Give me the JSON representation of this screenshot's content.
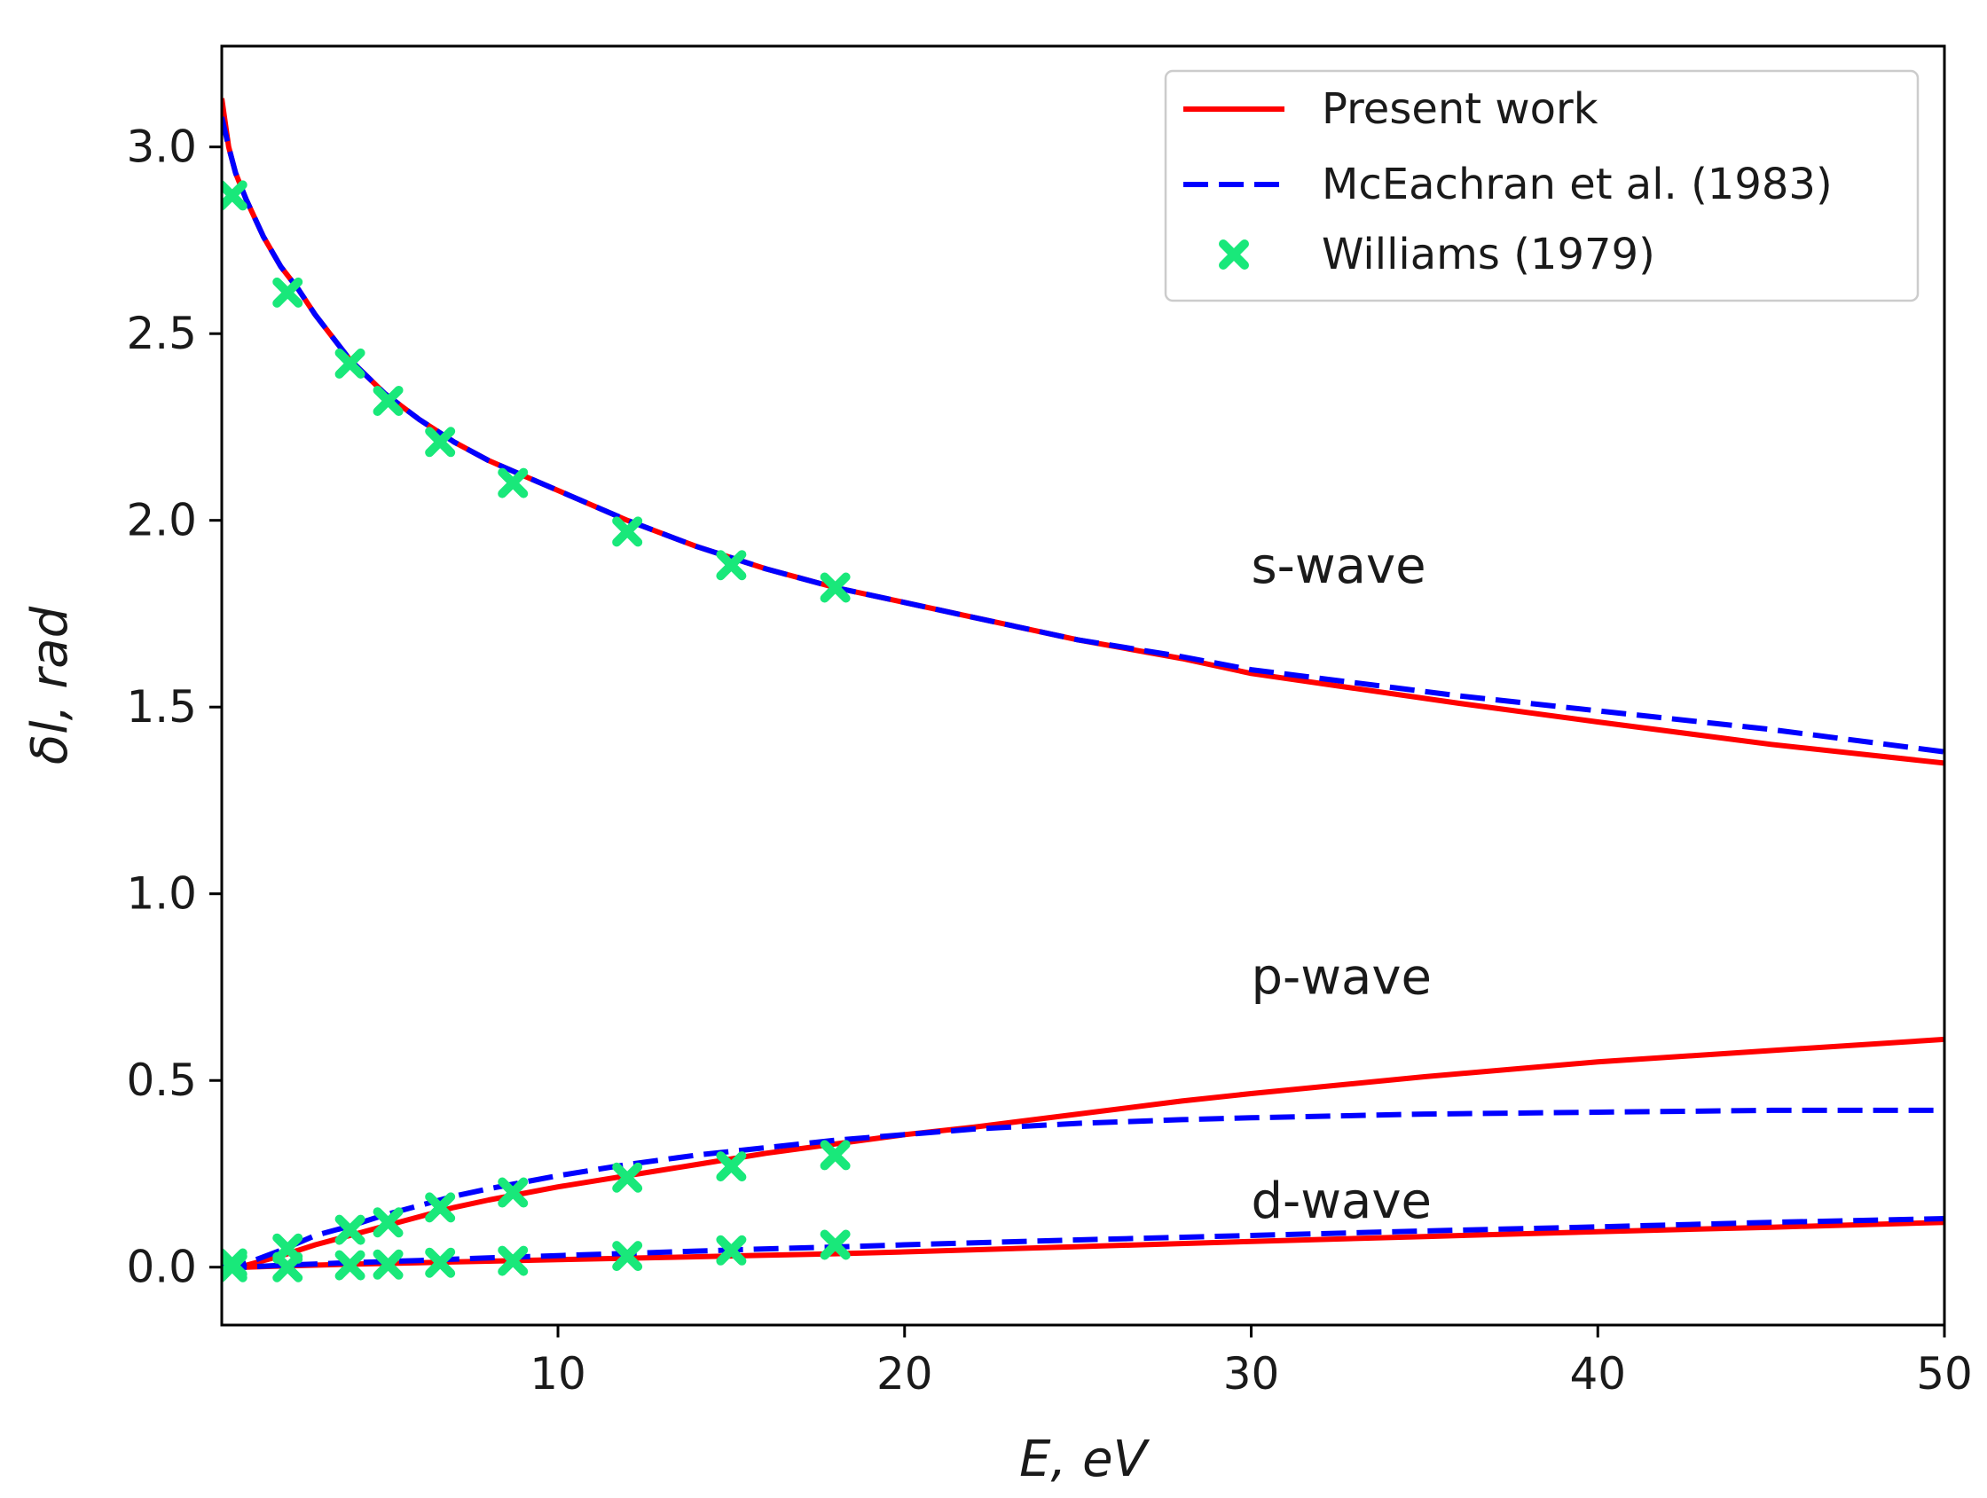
{
  "chart_data": {
    "type": "line",
    "title": "",
    "xlabel": "E, eV",
    "ylabel": "δl, rad",
    "xlim": [
      0.3,
      50
    ],
    "ylim": [
      -0.155,
      3.27
    ],
    "xticks": [
      10,
      20,
      30,
      40,
      50
    ],
    "yticks": [
      0.0,
      0.5,
      1.0,
      1.5,
      2.0,
      2.5,
      3.0
    ],
    "xtick_labels": [
      "10",
      "20",
      "30",
      "40",
      "50"
    ],
    "ytick_labels": [
      "0.0",
      "0.5",
      "1.0",
      "1.5",
      "2.0",
      "2.5",
      "3.0"
    ],
    "legend_position": "top-right",
    "legend": [
      {
        "key": "present",
        "label": "Present work",
        "style": "solid",
        "color": "#ff0000"
      },
      {
        "key": "mceachran",
        "label": "McEachran et al. (1983)",
        "style": "dashed",
        "color": "#0000ff"
      },
      {
        "key": "williams",
        "label": "Williams (1979)",
        "style": "x-marker",
        "color": "#19e87a"
      }
    ],
    "annotations": [
      {
        "key": "s",
        "text": "s-wave",
        "x": 30,
        "y": 1.88
      },
      {
        "key": "p",
        "text": "p-wave",
        "x": 30,
        "y": 0.78
      },
      {
        "key": "d",
        "text": "d-wave",
        "x": 30,
        "y": 0.18
      }
    ],
    "series": [
      {
        "name": "Present work s-wave",
        "style": "solid",
        "color": "#ff0000",
        "x": [
          0.3,
          0.5,
          0.7,
          1,
          1.5,
          2,
          2.5,
          3,
          4,
          5,
          6,
          7,
          8,
          9,
          10,
          12,
          14,
          16,
          18,
          20,
          22,
          25,
          28,
          30,
          33,
          36,
          40,
          45,
          50
        ],
        "y": [
          3.13,
          3.0,
          2.93,
          2.86,
          2.76,
          2.68,
          2.62,
          2.55,
          2.43,
          2.34,
          2.27,
          2.21,
          2.16,
          2.12,
          2.08,
          2.0,
          1.93,
          1.87,
          1.82,
          1.78,
          1.74,
          1.68,
          1.63,
          1.59,
          1.55,
          1.51,
          1.46,
          1.4,
          1.35
        ]
      },
      {
        "name": "McEachran et al. (1983) s-wave",
        "style": "dashed",
        "color": "#0000ff",
        "x": [
          0.3,
          0.5,
          0.7,
          1,
          1.5,
          2,
          2.5,
          3,
          4,
          5,
          6,
          7,
          8,
          9,
          10,
          12,
          14,
          16,
          18,
          20,
          22,
          25,
          28,
          30,
          33,
          36,
          40,
          45,
          50
        ],
        "y": [
          3.08,
          3.0,
          2.93,
          2.86,
          2.76,
          2.68,
          2.62,
          2.55,
          2.43,
          2.34,
          2.27,
          2.21,
          2.16,
          2.12,
          2.08,
          2.0,
          1.93,
          1.87,
          1.82,
          1.78,
          1.74,
          1.68,
          1.635,
          1.6,
          1.565,
          1.53,
          1.49,
          1.44,
          1.38
        ]
      },
      {
        "name": "Present work p-wave",
        "style": "solid",
        "color": "#ff0000",
        "x": [
          0.3,
          1,
          2,
          3,
          4,
          5,
          6,
          7,
          8,
          10,
          12,
          14,
          16,
          18,
          20,
          22,
          25,
          28,
          30,
          35,
          40,
          45,
          50
        ],
        "y": [
          0.0,
          0.005,
          0.03,
          0.06,
          0.085,
          0.11,
          0.135,
          0.16,
          0.18,
          0.215,
          0.245,
          0.275,
          0.305,
          0.33,
          0.355,
          0.375,
          0.41,
          0.445,
          0.465,
          0.51,
          0.55,
          0.58,
          0.61
        ]
      },
      {
        "name": "McEachran et al. (1983) p-wave",
        "style": "dashed",
        "color": "#0000ff",
        "x": [
          0.3,
          1,
          2,
          3,
          4,
          5,
          6,
          7,
          8,
          10,
          12,
          14,
          16,
          18,
          20,
          22,
          25,
          28,
          30,
          35,
          40,
          45,
          50
        ],
        "y": [
          0.0,
          0.01,
          0.045,
          0.085,
          0.11,
          0.14,
          0.165,
          0.19,
          0.21,
          0.245,
          0.275,
          0.3,
          0.32,
          0.34,
          0.355,
          0.37,
          0.385,
          0.395,
          0.4,
          0.41,
          0.415,
          0.42,
          0.42
        ]
      },
      {
        "name": "Present work d-wave",
        "style": "solid",
        "color": "#ff0000",
        "x": [
          0.3,
          1,
          2,
          4,
          6,
          8,
          10,
          12,
          14,
          16,
          18,
          20,
          25,
          30,
          35,
          40,
          45,
          50
        ],
        "y": [
          0.0,
          0.0,
          0.003,
          0.008,
          0.012,
          0.016,
          0.02,
          0.024,
          0.028,
          0.032,
          0.036,
          0.041,
          0.055,
          0.069,
          0.082,
          0.095,
          0.107,
          0.12
        ]
      },
      {
        "name": "McEachran et al. (1983) d-wave",
        "style": "dashed",
        "color": "#0000ff",
        "x": [
          0.3,
          1,
          2,
          4,
          6,
          8,
          10,
          12,
          14,
          16,
          18,
          20,
          25,
          30,
          35,
          40,
          45,
          50
        ],
        "y": [
          0.0,
          0.0,
          0.005,
          0.012,
          0.018,
          0.025,
          0.031,
          0.037,
          0.043,
          0.049,
          0.054,
          0.06,
          0.073,
          0.085,
          0.097,
          0.108,
          0.12,
          0.13
        ]
      },
      {
        "name": "Williams (1979) s-wave",
        "style": "x-marker",
        "color": "#19e87a",
        "x": [
          0.6,
          2.2,
          4,
          5.1,
          6.6,
          8.7,
          12,
          15,
          18
        ],
        "y": [
          2.87,
          2.61,
          2.42,
          2.32,
          2.21,
          2.1,
          1.97,
          1.88,
          1.82
        ]
      },
      {
        "name": "Williams (1979) p-wave",
        "style": "x-marker",
        "color": "#19e87a",
        "x": [
          0.6,
          2.2,
          4,
          5.1,
          6.6,
          8.7,
          12,
          15,
          18
        ],
        "y": [
          0.01,
          0.05,
          0.1,
          0.12,
          0.16,
          0.2,
          0.24,
          0.27,
          0.3
        ]
      },
      {
        "name": "Williams (1979) d-wave",
        "style": "x-marker",
        "color": "#19e87a",
        "x": [
          0.6,
          2.2,
          4,
          5.1,
          6.6,
          8.7,
          12,
          15,
          18
        ],
        "y": [
          0.0,
          0.0,
          0.005,
          0.007,
          0.012,
          0.017,
          0.03,
          0.045,
          0.06
        ]
      }
    ]
  }
}
